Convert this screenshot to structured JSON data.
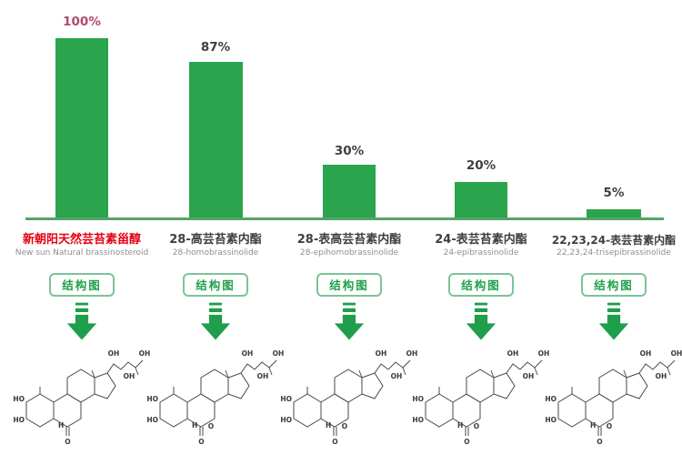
{
  "chart_data": {
    "type": "bar",
    "title": "",
    "xlabel": "",
    "ylabel": "",
    "ylim": [
      0,
      100
    ],
    "grid": false,
    "legend": null,
    "bar_color": "#2aa44d",
    "categories": [
      "新朝阳天然芸苔素甾醇 (New sun Natural brassinosteroid)",
      "28-高芸苔素内酯 (28-homobrassinolide)",
      "28-表高芸苔素内酯 (28-epihomobrassinolide)",
      "24-表芸苔素内酯 (24-epibrassinolide)",
      "22,23,24-表芸苔素内酯 (22,23,24-trisepibrassinolide)"
    ],
    "values": [
      100,
      87,
      30,
      20,
      5
    ],
    "value_labels": [
      "100%",
      "87%",
      "30%",
      "20%",
      "5%"
    ]
  },
  "columns": [
    {
      "percent": "100%",
      "name_zh": "新朝阳天然芸苔素甾醇",
      "name_en": "New sun Natural brassinosteroid",
      "button_label": "结构图"
    },
    {
      "percent": "87%",
      "name_zh": "28-高芸苔素内酯",
      "name_en": "28-homobrassinolide",
      "button_label": "结构图"
    },
    {
      "percent": "30%",
      "name_zh": "28-表高芸苔素内酯",
      "name_en": "28-epihomobrassinolide",
      "button_label": "结构图"
    },
    {
      "percent": "20%",
      "name_zh": "24-表芸苔素内酯",
      "name_en": "24-epibrassinolide",
      "button_label": "结构图"
    },
    {
      "percent": "5%",
      "name_zh": "22,23,24-表芸苔素内酯",
      "name_en": "22,23,24-trisepibrassinolide",
      "button_label": "结构图"
    }
  ],
  "atoms": {
    "ho": "HO",
    "oh": "OH",
    "o": "O",
    "h": "H"
  },
  "colors": {
    "bar_green": "#2aa44d",
    "axis_green": "#55a46a",
    "button_green": "#21a04c",
    "button_border": "#7cc397",
    "arrow_green": "#1f9e4c",
    "percent_highlight": "#b04a6e",
    "name_highlight": "#e60012",
    "ink": "#3f3f3f",
    "subtext_gray": "#8f8f8f",
    "bond_gray": "#4a4a4a"
  }
}
